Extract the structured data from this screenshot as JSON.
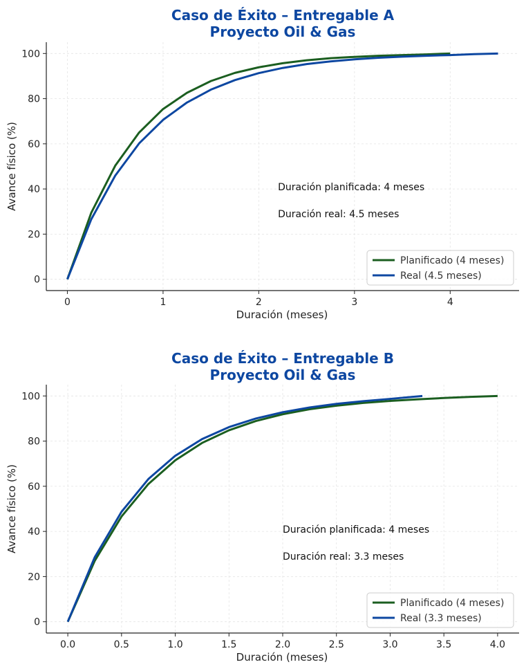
{
  "chart_data": [
    {
      "type": "line",
      "title": [
        "Caso de Éxito – Entregable A",
        "Proyecto Oil & Gas"
      ],
      "xlabel": "Duración (meses)",
      "ylabel": "Avance físico (%)",
      "xlim": [
        -0.22,
        4.72
      ],
      "ylim": [
        -5,
        105
      ],
      "xticks": [
        0,
        1,
        2,
        3,
        4
      ],
      "xtick_labels": [
        "0",
        "1",
        "2",
        "3",
        "4"
      ],
      "yticks": [
        0,
        20,
        40,
        60,
        80,
        100
      ],
      "ytick_labels": [
        "0",
        "20",
        "40",
        "60",
        "80",
        "100"
      ],
      "grid": true,
      "legend_position": "bottom-right",
      "series": [
        {
          "name": "Planificado (4 meses)",
          "color": "#1b5e20",
          "x": [
            0,
            0.25,
            0.5,
            0.75,
            1.0,
            1.25,
            1.5,
            1.75,
            2.0,
            2.25,
            2.5,
            2.75,
            3.0,
            3.25,
            3.5,
            3.75,
            4.0
          ],
          "y": [
            0,
            29.5,
            50.3,
            65.0,
            75.4,
            82.6,
            87.8,
            91.4,
            93.9,
            95.7,
            97.0,
            97.9,
            98.5,
            99.0,
            99.3,
            99.6,
            100
          ]
        },
        {
          "name": "Real (4.5 meses)",
          "color": "#0d47a1",
          "x": [
            0,
            0.25,
            0.5,
            0.75,
            1.0,
            1.25,
            1.5,
            1.75,
            2.0,
            2.25,
            2.5,
            2.75,
            3.0,
            3.25,
            3.5,
            3.75,
            4.0,
            4.25,
            4.5
          ],
          "y": [
            0,
            26.6,
            45.9,
            60.2,
            70.6,
            78.3,
            84.0,
            88.2,
            91.3,
            93.6,
            95.3,
            96.5,
            97.4,
            98.1,
            98.6,
            99.0,
            99.3,
            99.7,
            100
          ]
        }
      ],
      "annotations": [
        {
          "text": "Duración planificada: 4 meses",
          "x": 2.2,
          "y": 41
        },
        {
          "text": "Duración real: 4.5 meses",
          "x": 2.2,
          "y": 29
        }
      ]
    },
    {
      "type": "line",
      "title": [
        "Caso de Éxito – Entregable B",
        "Proyecto Oil & Gas"
      ],
      "xlabel": "Duración (meses)",
      "ylabel": "Avance físico (%)",
      "xlim": [
        -0.2,
        4.2
      ],
      "ylim": [
        -5,
        105
      ],
      "xticks": [
        0,
        0.5,
        1,
        1.5,
        2,
        2.5,
        3,
        3.5,
        4
      ],
      "xtick_labels": [
        "0.0",
        "0.5",
        "1.0",
        "1.5",
        "2.0",
        "2.5",
        "3.0",
        "3.5",
        "4.0"
      ],
      "yticks": [
        0,
        20,
        40,
        60,
        80,
        100
      ],
      "ytick_labels": [
        "0",
        "20",
        "40",
        "60",
        "80",
        "100"
      ],
      "grid": true,
      "legend_position": "bottom-right",
      "series": [
        {
          "name": "Planificado (4 meses)",
          "color": "#1b5e20",
          "x": [
            0,
            0.25,
            0.5,
            0.75,
            1.0,
            1.25,
            1.5,
            1.75,
            2.0,
            2.25,
            2.5,
            2.75,
            3.0,
            3.25,
            3.5,
            3.75,
            4.0
          ],
          "y": [
            0,
            26.9,
            46.6,
            61.0,
            71.5,
            79.2,
            84.8,
            88.9,
            91.9,
            94.1,
            95.7,
            96.9,
            97.8,
            98.5,
            99.1,
            99.6,
            100
          ]
        },
        {
          "name": "Real (3.3 meses)",
          "color": "#0d47a1",
          "x": [
            0,
            0.25,
            0.5,
            0.75,
            1.0,
            1.25,
            1.5,
            1.75,
            2.0,
            2.25,
            2.5,
            2.75,
            3.0,
            3.3
          ],
          "y": [
            0,
            28.5,
            48.7,
            63.2,
            73.5,
            80.9,
            86.2,
            90.0,
            92.8,
            94.9,
            96.5,
            97.7,
            98.7,
            100
          ]
        }
      ],
      "annotations": [
        {
          "text": "Duración planificada: 4 meses",
          "x": 2.0,
          "y": 41
        },
        {
          "text": "Duración real: 3.3 meses",
          "x": 2.0,
          "y": 29
        }
      ]
    }
  ]
}
